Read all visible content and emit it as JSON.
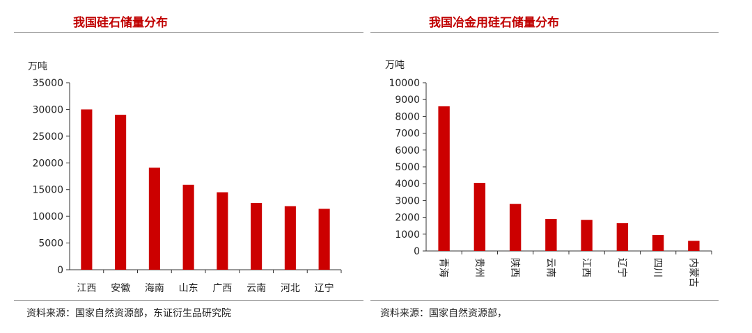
{
  "chart_data": [
    {
      "type": "bar",
      "title": "我国硅石储量分布",
      "ylabel": "万吨",
      "categories": [
        "江西",
        "安徽",
        "海南",
        "山东",
        "广西",
        "云南",
        "河北",
        "辽宁"
      ],
      "values": [
        30000,
        29000,
        19100,
        15900,
        14500,
        12500,
        11900,
        11400
      ],
      "ylim": [
        0,
        35000
      ],
      "yticks": [
        "0",
        "5000",
        "10000",
        "15000",
        "20000",
        "25000",
        "30000",
        "35000"
      ],
      "bar_color": "#cc0000",
      "grid": false,
      "source": "资料来源：国家自然资源部，东证衍生品研究院"
    },
    {
      "type": "bar",
      "title": "我国冶金用硅石储量分布",
      "ylabel": "万吨",
      "categories": [
        "青海",
        "贵州",
        "陕西",
        "云南",
        "江西",
        "辽宁",
        "四川",
        "内蒙古"
      ],
      "values": [
        8600,
        4050,
        2800,
        1900,
        1850,
        1650,
        950,
        600
      ],
      "ylim": [
        0,
        10000
      ],
      "yticks": [
        "0",
        "1000",
        "2000",
        "3000",
        "4000",
        "5000",
        "6000",
        "7000",
        "8000",
        "9000",
        "10000"
      ],
      "bar_color": "#cc0000",
      "grid": false,
      "source": "资料来源：国家自然资源部，"
    }
  ]
}
